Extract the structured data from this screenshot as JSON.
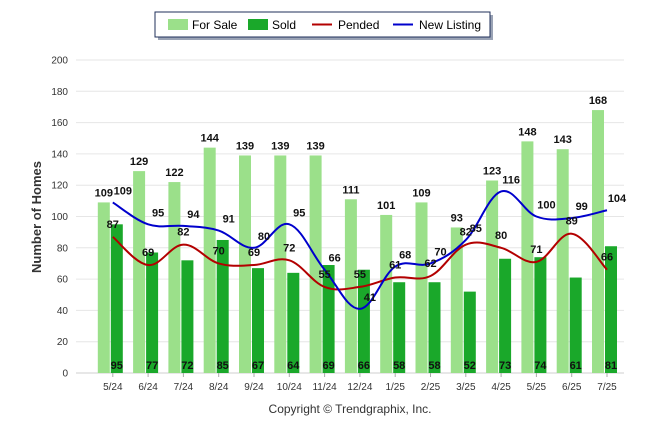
{
  "chart_data": {
    "type": "bar",
    "ylabel": "Number of Homes",
    "ylim": [
      0,
      200
    ],
    "yticks": [
      0,
      20,
      40,
      60,
      80,
      100,
      120,
      140,
      160,
      180,
      200
    ],
    "categories": [
      "5/24",
      "6/24",
      "7/24",
      "8/24",
      "9/24",
      "10/24",
      "11/24",
      "12/24",
      "1/25",
      "2/25",
      "3/25",
      "4/25",
      "5/25",
      "6/25",
      "7/25"
    ],
    "legend": {
      "position": "top"
    },
    "series": [
      {
        "name": "For Sale",
        "kind": "bar",
        "color": "#9be08a",
        "values": [
          109,
          129,
          122,
          144,
          139,
          139,
          139,
          111,
          101,
          109,
          93,
          123,
          148,
          143,
          168
        ]
      },
      {
        "name": "Sold",
        "kind": "bar",
        "color": "#1aa82a",
        "values": [
          95,
          77,
          72,
          85,
          67,
          64,
          69,
          66,
          58,
          58,
          52,
          73,
          74,
          61,
          81
        ]
      },
      {
        "name": "Pended",
        "kind": "line",
        "color": "#b30000",
        "values": [
          87,
          69,
          82,
          70,
          69,
          72,
          55,
          55,
          61,
          62,
          82,
          80,
          71,
          89,
          66
        ]
      },
      {
        "name": "New Listing",
        "kind": "line",
        "color": "#0000cc",
        "values": [
          109,
          95,
          94,
          91,
          80,
          95,
          66,
          41,
          68,
          70,
          85,
          116,
          100,
          99,
          104
        ]
      }
    ],
    "footer": "Copyright © Trendgraphix, Inc."
  }
}
